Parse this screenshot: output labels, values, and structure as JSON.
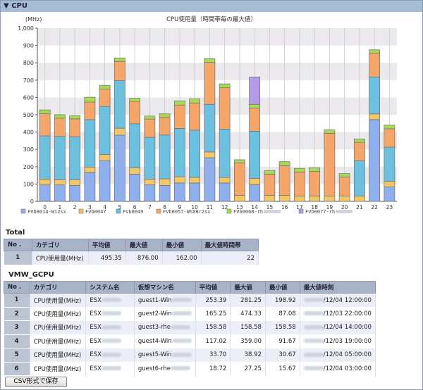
{
  "section": {
    "arrow": "▼",
    "title": "CPU"
  },
  "chart_data": {
    "type": "bar",
    "stacked": true,
    "title": "CPU使用量（時間帯毎の最大値）",
    "ylabel": "(MHz)",
    "xlabel": "",
    "ylim": [
      0,
      1000
    ],
    "yticks": [
      "0",
      "100",
      "200",
      "300",
      "400",
      "500",
      "600",
      "700",
      "800",
      "900",
      "1,000"
    ],
    "categories": [
      "0",
      "1",
      "2",
      "3",
      "4",
      "5",
      "6",
      "7",
      "8",
      "9",
      "10",
      "11",
      "12",
      "13",
      "14",
      "15",
      "16",
      "17",
      "18",
      "19",
      "20",
      "21",
      "22",
      "23"
    ],
    "legend_position": "bottom",
    "series": [
      {
        "name": "FVb0014-W12sx",
        "color": "#8fb0ee",
        "values": [
          95,
          95,
          92,
          167,
          235,
          382,
          157,
          95,
          92,
          106,
          106,
          252,
          106,
          0,
          96,
          0,
          0,
          0,
          0,
          0,
          0,
          0,
          472,
          83
        ]
      },
      {
        "name": "FVb0047",
        "color": "#f3c765",
        "values": [
          33,
          30,
          33,
          31,
          35,
          40,
          36,
          33,
          38,
          36,
          32,
          33,
          32,
          35,
          37,
          35,
          35,
          31,
          31,
          31,
          31,
          31,
          33,
          32
        ]
      },
      {
        "name": "FVb0049",
        "color": "#6cc0e0",
        "values": [
          250,
          250,
          248,
          274,
          278,
          275,
          255,
          242,
          253,
          279,
          273,
          275,
          279,
          0,
          272,
          0,
          0,
          0,
          0,
          0,
          0,
          203,
          213,
          198
        ]
      },
      {
        "name": "FVb0057-WS08r2sx",
        "color": "#f7a66a",
        "values": [
          129,
          105,
          103,
          101,
          100,
          111,
          129,
          105,
          102,
          135,
          157,
          242,
          239,
          187,
          133,
          122,
          171,
          138,
          141,
          362,
          109,
          107,
          138,
          106
        ]
      },
      {
        "name": "FVb0068-rh",
        "color": "#a6dd4e",
        "values": [
          21,
          20,
          19,
          28,
          22,
          20,
          18,
          18,
          20,
          24,
          24,
          22,
          22,
          18,
          22,
          21,
          23,
          21,
          22,
          20,
          20,
          19,
          19,
          21
        ]
      },
      {
        "name": "FVb0077-rh",
        "color": "#b49ae8",
        "values": [
          0,
          0,
          0,
          0,
          0,
          0,
          0,
          0,
          0,
          0,
          0,
          0,
          0,
          0,
          158,
          0,
          0,
          0,
          0,
          0,
          0,
          0,
          0,
          0
        ]
      }
    ]
  },
  "total": {
    "title": "Total",
    "headers": [
      "No .",
      "カテゴリ",
      "平均値",
      "最大値",
      "最小値",
      "最大値時間帯"
    ],
    "rows": [
      [
        "1",
        "CPU使用量(MHz)",
        "495.35",
        "876.00",
        "162.00",
        "22"
      ]
    ]
  },
  "vmw": {
    "title": "VMW_GCPU",
    "headers": [
      "No .",
      "カテゴリ",
      "システム名",
      "仮想マシン名",
      "平均値",
      "最大値",
      "最小値",
      "最大値時刻"
    ],
    "rows": [
      [
        "1",
        "CPU使用量(MHz)",
        "ESX",
        "guest1-Win",
        "253.39",
        "281.25",
        "198.92",
        "/12/04 12:00:00"
      ],
      [
        "2",
        "CPU使用量(MHz)",
        "ESX",
        "guest2-Win",
        "165.25",
        "474.33",
        "87.08",
        "/12/03 22:00:00"
      ],
      [
        "3",
        "CPU使用量(MHz)",
        "ESX",
        "guest3-rhe",
        "158.58",
        "158.58",
        "158.58",
        "/12/04 14:00:00"
      ],
      [
        "4",
        "CPU使用量(MHz)",
        "ESX",
        "guest4-Win",
        "117.02",
        "359.00",
        "91.67",
        "/12/03 19:00:00"
      ],
      [
        "5",
        "CPU使用量(MHz)",
        "ESX",
        "guest5-Win",
        "33.70",
        "38.92",
        "30.67",
        "/12/04 05:00:00"
      ],
      [
        "6",
        "CPU使用量(MHz)",
        "ESX",
        "guest6-rhe",
        "18.72",
        "27.25",
        "15.67",
        "/12/04 03:00:00"
      ]
    ]
  },
  "save_button": "CSV形式で保存"
}
